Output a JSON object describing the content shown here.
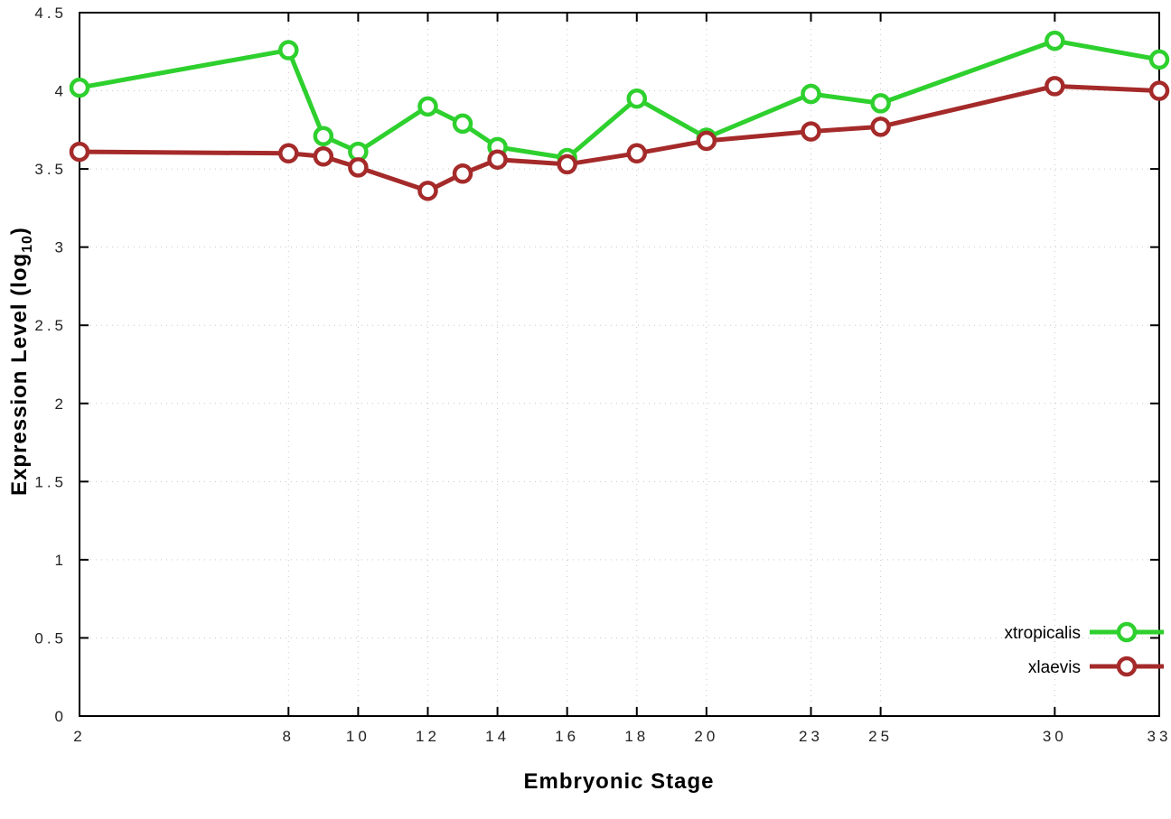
{
  "chart_data": {
    "type": "line",
    "title": "",
    "xlabel": "Embryonic Stage",
    "ylabel": "Expression Level (log10)",
    "ylabel_prefix": "Expression Level (log",
    "ylabel_sub": "10",
    "ylabel_suffix": ")",
    "xlim": [
      2,
      33
    ],
    "ylim": [
      0,
      4.5
    ],
    "grid": true,
    "grid_color": "#c8c8c8",
    "axis_color": "#000000",
    "background": "#ffffff",
    "legend_position": "inside-bottom-right",
    "x": [
      2,
      8,
      9,
      10,
      12,
      13,
      14,
      16,
      18,
      20,
      23,
      25,
      30,
      33
    ],
    "xticks": [
      2,
      8,
      10,
      12,
      14,
      16,
      18,
      20,
      23,
      25,
      30,
      33
    ],
    "yticks": [
      {
        "v": 0,
        "label": "0"
      },
      {
        "v": 0.5,
        "label": "0.5"
      },
      {
        "v": 1,
        "label": "1"
      },
      {
        "v": 1.5,
        "label": "1.5"
      },
      {
        "v": 2,
        "label": "2"
      },
      {
        "v": 2.5,
        "label": "2.5"
      },
      {
        "v": 3,
        "label": "3"
      },
      {
        "v": 3.5,
        "label": "3.5"
      },
      {
        "v": 4,
        "label": "4"
      },
      {
        "v": 4.5,
        "label": "4.5"
      }
    ],
    "series": [
      {
        "name": "xtropicalis",
        "color": "#2ed02e",
        "values": [
          4.02,
          4.26,
          3.71,
          3.61,
          3.9,
          3.79,
          3.64,
          3.57,
          3.95,
          3.7,
          3.98,
          3.92,
          4.32,
          4.2
        ]
      },
      {
        "name": "xlaevis",
        "color": "#a52a2a",
        "values": [
          3.61,
          3.6,
          3.58,
          3.51,
          3.36,
          3.47,
          3.56,
          3.53,
          3.6,
          3.68,
          3.74,
          3.77,
          4.03,
          4.0
        ]
      }
    ]
  }
}
